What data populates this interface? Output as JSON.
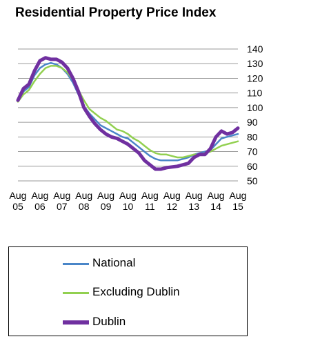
{
  "chart_data": {
    "type": "line",
    "title": "Residential Property Price Index",
    "ylim": [
      50,
      140
    ],
    "yticks": [
      50,
      60,
      70,
      80,
      90,
      100,
      110,
      120,
      130,
      140
    ],
    "xticks": [
      {
        "x": 2005.58,
        "month": "Aug",
        "year": "05"
      },
      {
        "x": 2006.58,
        "month": "Aug",
        "year": "06"
      },
      {
        "x": 2007.58,
        "month": "Aug",
        "year": "07"
      },
      {
        "x": 2008.58,
        "month": "Aug",
        "year": "08"
      },
      {
        "x": 2009.58,
        "month": "Aug",
        "year": "09"
      },
      {
        "x": 2010.58,
        "month": "Aug",
        "year": "10"
      },
      {
        "x": 2011.58,
        "month": "Aug",
        "year": "11"
      },
      {
        "x": 2012.58,
        "month": "Aug",
        "year": "12"
      },
      {
        "x": 2013.58,
        "month": "Aug",
        "year": "13"
      },
      {
        "x": 2014.58,
        "month": "Aug",
        "year": "14"
      },
      {
        "x": 2015.58,
        "month": "Aug",
        "year": "15"
      }
    ],
    "xlim": [
      2005.58,
      2015.58
    ],
    "grid": true,
    "legend_position": "bottom",
    "series": [
      {
        "name": "National",
        "color": "#4a86c8",
        "x": [
          2005.58,
          2005.83,
          2006.08,
          2006.33,
          2006.58,
          2006.83,
          2007.08,
          2007.33,
          2007.58,
          2007.83,
          2008.08,
          2008.33,
          2008.58,
          2008.83,
          2009.08,
          2009.33,
          2009.58,
          2009.83,
          2010.08,
          2010.33,
          2010.58,
          2010.83,
          2011.08,
          2011.33,
          2011.58,
          2011.83,
          2012.08,
          2012.33,
          2012.58,
          2012.83,
          2013.08,
          2013.33,
          2013.58,
          2013.83,
          2014.08,
          2014.33,
          2014.58,
          2014.83,
          2015.08,
          2015.33,
          2015.58
        ],
        "values": [
          105,
          111,
          114,
          122,
          127,
          129.5,
          130.5,
          129.5,
          127,
          123,
          117,
          109,
          101,
          96,
          92,
          88,
          86,
          84,
          82,
          80,
          79,
          76,
          73,
          70,
          67,
          65,
          64,
          64,
          64,
          64,
          65,
          66,
          68,
          69,
          70,
          71,
          75,
          79,
          80,
          81,
          82
        ]
      },
      {
        "name": "Excluding Dublin",
        "color": "#92d050",
        "x": [
          2005.58,
          2005.83,
          2006.08,
          2006.33,
          2006.58,
          2006.83,
          2007.08,
          2007.33,
          2007.58,
          2007.83,
          2008.08,
          2008.33,
          2008.58,
          2008.83,
          2009.08,
          2009.33,
          2009.58,
          2009.83,
          2010.08,
          2010.33,
          2010.58,
          2010.83,
          2011.08,
          2011.33,
          2011.58,
          2011.83,
          2012.08,
          2012.33,
          2012.58,
          2012.83,
          2013.08,
          2013.33,
          2013.58,
          2013.83,
          2014.08,
          2014.33,
          2014.58,
          2014.83,
          2015.08,
          2015.33,
          2015.58
        ],
        "values": [
          104,
          109,
          112,
          118,
          123,
          127,
          128.5,
          128.5,
          127,
          124,
          119,
          112,
          105,
          99,
          96,
          93,
          91,
          88,
          85,
          84,
          82,
          79,
          77,
          74,
          71,
          69,
          68,
          68,
          67,
          66,
          66,
          67,
          68,
          68,
          69,
          70,
          72,
          74,
          75,
          76,
          77
        ]
      },
      {
        "name": "Dublin",
        "color": "#7030a0",
        "x": [
          2005.58,
          2005.83,
          2006.08,
          2006.33,
          2006.58,
          2006.83,
          2007.08,
          2007.33,
          2007.58,
          2007.83,
          2008.08,
          2008.33,
          2008.58,
          2008.83,
          2009.08,
          2009.33,
          2009.58,
          2009.83,
          2010.08,
          2010.33,
          2010.58,
          2010.83,
          2011.08,
          2011.33,
          2011.58,
          2011.83,
          2012.08,
          2012.33,
          2012.58,
          2012.83,
          2013.08,
          2013.33,
          2013.58,
          2013.83,
          2014.08,
          2014.33,
          2014.58,
          2014.83,
          2015.08,
          2015.33,
          2015.58
        ],
        "values": [
          105,
          113,
          116,
          125,
          132,
          134,
          133,
          133,
          131,
          127,
          120,
          111,
          100,
          94,
          89,
          85,
          82,
          80,
          79,
          77,
          75,
          72,
          69,
          64,
          61,
          58,
          58,
          59,
          59.5,
          60,
          61,
          62,
          66,
          68,
          68,
          72,
          80,
          84,
          82,
          83,
          86
        ]
      }
    ]
  }
}
